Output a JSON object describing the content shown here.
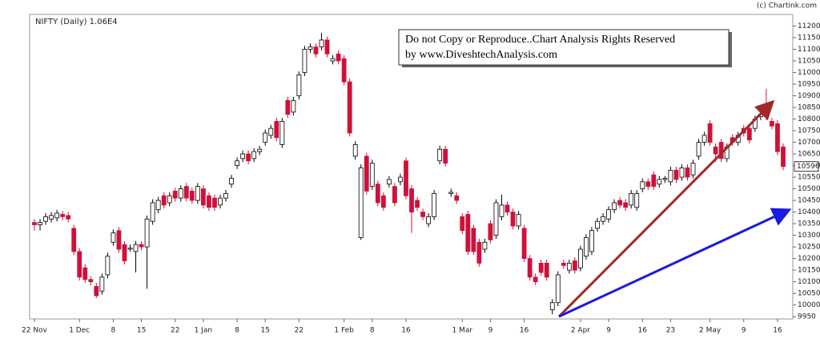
{
  "chart_data": {
    "type": "candlestick",
    "title": "NIFTY (Daily) 1.06E4",
    "source": "(c) Chartink.com",
    "annotation": [
      "Do not Copy or Reproduce..Chart Analysis Rights Reserved",
      "by www.DiveshtechAnalysis.com"
    ],
    "up_color": "#ffffff",
    "down_color": "#d0103a",
    "categories": [
      "22 Nov",
      null,
      null,
      null,
      null,
      null,
      null,
      null,
      "1 Dec",
      null,
      null,
      null,
      null,
      null,
      "8",
      null,
      null,
      null,
      null,
      "15",
      null,
      null,
      null,
      null,
      null,
      "22",
      null,
      null,
      null,
      null,
      "1 Jan",
      null,
      null,
      null,
      null,
      null,
      "8",
      null,
      null,
      null,
      null,
      "15",
      null,
      null,
      null,
      null,
      null,
      "22",
      null,
      null,
      null,
      null,
      null,
      null,
      null,
      "1 Feb",
      null,
      null,
      null,
      null,
      "8",
      null,
      null,
      null,
      null,
      null,
      "16",
      null,
      null,
      null,
      null,
      null,
      null,
      null,
      null,
      null,
      "1 Mar",
      null,
      null,
      null,
      null,
      "9",
      null,
      null,
      null,
      null,
      null,
      "16",
      null,
      null,
      null,
      null,
      null,
      null,
      null,
      null,
      null,
      "2 Apr",
      null,
      null,
      null,
      null,
      "9",
      null,
      null,
      null,
      null,
      null,
      "16",
      null,
      null,
      null,
      null,
      "23",
      null,
      null,
      null,
      null,
      null,
      null,
      "2 May",
      null,
      null,
      null,
      null,
      null,
      "9",
      null,
      null,
      null,
      null,
      null,
      "16",
      null
    ],
    "open": [
      10355,
      10345,
      10360,
      10370,
      10375,
      10390,
      10385,
      10330,
      10230,
      10160,
      10110,
      10080,
      10060,
      10130,
      10270,
      10320,
      10260,
      10240,
      10230,
      10260,
      10250,
      10360,
      10410,
      10470,
      10440,
      10490,
      10460,
      10510,
      10490,
      10450,
      10500,
      10470,
      10460,
      10430,
      10460,
      10520,
      10600,
      10630,
      10650,
      10630,
      10660,
      10700,
      10730,
      10790,
      10690,
      10880,
      10830,
      10900,
      11000,
      11100,
      11110,
      11110,
      11140,
      11050,
      11080,
      11060,
      10960,
      10640,
      10290,
      10640,
      10510,
      10520,
      10470,
      10520,
      10510,
      10530,
      10620,
      10500,
      10450,
      10400,
      10350,
      10380,
      10620,
      10670,
      10480,
      10470,
      10380,
      10390,
      10330,
      10270,
      10240,
      10350,
      10300,
      10380,
      10430,
      10400,
      10340,
      10330,
      10200,
      10120,
      10180,
      10180,
      9980,
      10010,
      10180,
      10150,
      10190,
      10160,
      10210,
      10230,
      10330,
      10360,
      10370,
      10410,
      10450,
      10440,
      10430,
      10420,
      10500,
      10530,
      10560,
      10520,
      10540,
      10530,
      10580,
      10550,
      10590,
      10560,
      10640,
      10700,
      10780,
      10680,
      10700,
      10630,
      10720,
      10700,
      10760,
      10760,
      10760,
      10810,
      10830,
      10790,
      10780,
      10680
    ],
    "high": [
      10370,
      10370,
      10395,
      10400,
      10410,
      10405,
      10400,
      10345,
      10245,
      10175,
      10125,
      10095,
      10135,
      10225,
      10325,
      10335,
      10275,
      10260,
      10275,
      10275,
      10385,
      10455,
      10465,
      10485,
      10485,
      10505,
      10515,
      10525,
      10505,
      10525,
      10515,
      10485,
      10475,
      10475,
      10495,
      10560,
      10635,
      10665,
      10665,
      10675,
      10685,
      10755,
      10775,
      10805,
      10805,
      10895,
      10895,
      11005,
      11115,
      11125,
      11125,
      11170,
      11155,
      11075,
      11095,
      11075,
      10975,
      10705,
      10605,
      10655,
      10625,
      10535,
      10485,
      10555,
      10525,
      10565,
      10635,
      10515,
      10465,
      10415,
      10395,
      10495,
      10685,
      10685,
      10500,
      10485,
      10395,
      10405,
      10345,
      10285,
      10285,
      10365,
      10455,
      10475,
      10445,
      10415,
      10405,
      10345,
      10215,
      10135,
      10195,
      10195,
      10025,
      10145,
      10195,
      10195,
      10205,
      10255,
      10305,
      10335,
      10375,
      10395,
      10425,
      10455,
      10465,
      10455,
      10495,
      10495,
      10545,
      10545,
      10575,
      10555,
      10555,
      10595,
      10595,
      10605,
      10605,
      10625,
      10715,
      10745,
      10795,
      10695,
      10715,
      10695,
      10735,
      10745,
      10775,
      10775,
      10815,
      10835,
      10930,
      10805,
      10795,
      10695
    ],
    "low": [
      10320,
      10320,
      10345,
      10355,
      10360,
      10365,
      10355,
      10215,
      10105,
      10095,
      10085,
      10030,
      10045,
      10115,
      10255,
      10225,
      10175,
      10230,
      10140,
      10235,
      10070,
      10345,
      10395,
      10415,
      10425,
      10445,
      10445,
      10445,
      10435,
      10435,
      10415,
      10405,
      10405,
      10415,
      10445,
      10505,
      10585,
      10615,
      10605,
      10615,
      10645,
      10685,
      10715,
      10705,
      10675,
      10805,
      10815,
      10885,
      10985,
      11085,
      11065,
      11095,
      11065,
      11035,
      11035,
      10945,
      10725,
      10625,
      10280,
      10475,
      10495,
      10425,
      10405,
      10505,
      10425,
      10515,
      10455,
      10310,
      10405,
      10365,
      10335,
      10365,
      10605,
      10595,
      10465,
      10435,
      10305,
      10215,
      10215,
      10165,
      10225,
      10265,
      10285,
      10365,
      10385,
      10325,
      10325,
      10185,
      10105,
      10085,
      10125,
      10105,
      9960,
      9995,
      10155,
      10135,
      10135,
      10145,
      10195,
      10215,
      10315,
      10345,
      10355,
      10395,
      10415,
      10405,
      10415,
      10405,
      10485,
      10495,
      10495,
      10505,
      10525,
      10515,
      10525,
      10535,
      10535,
      10545,
      10625,
      10685,
      10685,
      10615,
      10615,
      10615,
      10685,
      10685,
      10725,
      10695,
      10745,
      10795,
      10795,
      10755,
      10645,
      10580
    ],
    "close": [
      10345,
      10355,
      10380,
      10385,
      10395,
      10380,
      10370,
      10230,
      10120,
      10110,
      10100,
      10040,
      10120,
      10210,
      10310,
      10240,
      10190,
      10245,
      10260,
      10250,
      10370,
      10440,
      10450,
      10430,
      10470,
      10460,
      10500,
      10460,
      10450,
      10510,
      10430,
      10420,
      10420,
      10460,
      10480,
      10545,
      10620,
      10650,
      10620,
      10660,
      10670,
      10740,
      10760,
      10720,
      10790,
      10820,
      10880,
      10990,
      11100,
      11110,
      11080,
      11140,
      11080,
      11060,
      11050,
      10960,
      10740,
      10690,
      10590,
      10490,
      10610,
      10440,
      10420,
      10540,
      10440,
      10550,
      10470,
      10400,
      10420,
      10380,
      10380,
      10480,
      10670,
      10610,
      10485,
      10450,
      10320,
      10230,
      10230,
      10180,
      10270,
      10280,
      10440,
      10430,
      10400,
      10340,
      10390,
      10200,
      10120,
      10100,
      10140,
      10120,
      10010,
      10130,
      10170,
      10180,
      10150,
      10240,
      10290,
      10320,
      10360,
      10380,
      10410,
      10440,
      10430,
      10420,
      10480,
      10480,
      10530,
      10510,
      10510,
      10540,
      10545,
      10580,
      10540,
      10590,
      10550,
      10610,
      10700,
      10730,
      10700,
      10650,
      10630,
      10680,
      10700,
      10730,
      10740,
      10710,
      10800,
      10820,
      10810,
      10770,
      10660,
      10596
    ],
    "ylim": [
      9940,
      11250
    ],
    "yticks": [
      9950,
      10000,
      10050,
      10100,
      10150,
      10200,
      10250,
      10300,
      10350,
      10400,
      10450,
      10500,
      10550,
      10600,
      10650,
      10700,
      10750,
      10800,
      10850,
      10900,
      10950,
      11000,
      11050,
      11100,
      11150,
      11200
    ]
  }
}
